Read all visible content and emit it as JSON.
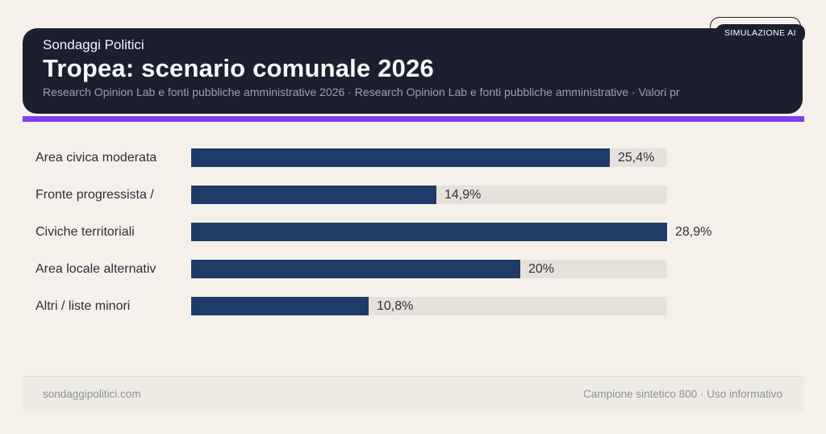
{
  "badge": {
    "label": "SIMULAZIONE AI"
  },
  "header": {
    "brand": "Sondaggi Politici",
    "title": "Tropea: scenario comunale 2026",
    "subtitle": "Research Opinion Lab e fonti pubbliche amministrative 2026 · Research Opinion Lab e fonti pubbliche amministrative · Valori pr"
  },
  "footer": {
    "left": "sondaggipolitici.com",
    "right": "Campione sintetico 800 · Uso informativo"
  },
  "colors": {
    "page_bg": "#f5f1ea",
    "header_bg": "#1b1f2e",
    "accent_purple": "#7d3ff2",
    "bar_navy": "#1f3c69",
    "track_gray": "#e6e2db",
    "text_dark": "#2c3039",
    "subtitle_gray": "#98a0b4",
    "footer_gray": "#8b919c"
  },
  "chart_data": {
    "type": "bar",
    "orientation": "horizontal",
    "title": "Tropea: scenario comunale 2026",
    "categories": [
      "Area civica moderata",
      "Fronte progressista /",
      "Civiche territoriali",
      "Area locale alternativ",
      "Altri / liste minori"
    ],
    "values": [
      25.4,
      14.9,
      28.9,
      20,
      10.8
    ],
    "value_labels": [
      "25,4%",
      "14,9%",
      "28,9%",
      "20%",
      "10,8%"
    ],
    "xlim": [
      0,
      28.9
    ],
    "grid": false,
    "legend": false,
    "value_label_position": "right-of-bar"
  }
}
